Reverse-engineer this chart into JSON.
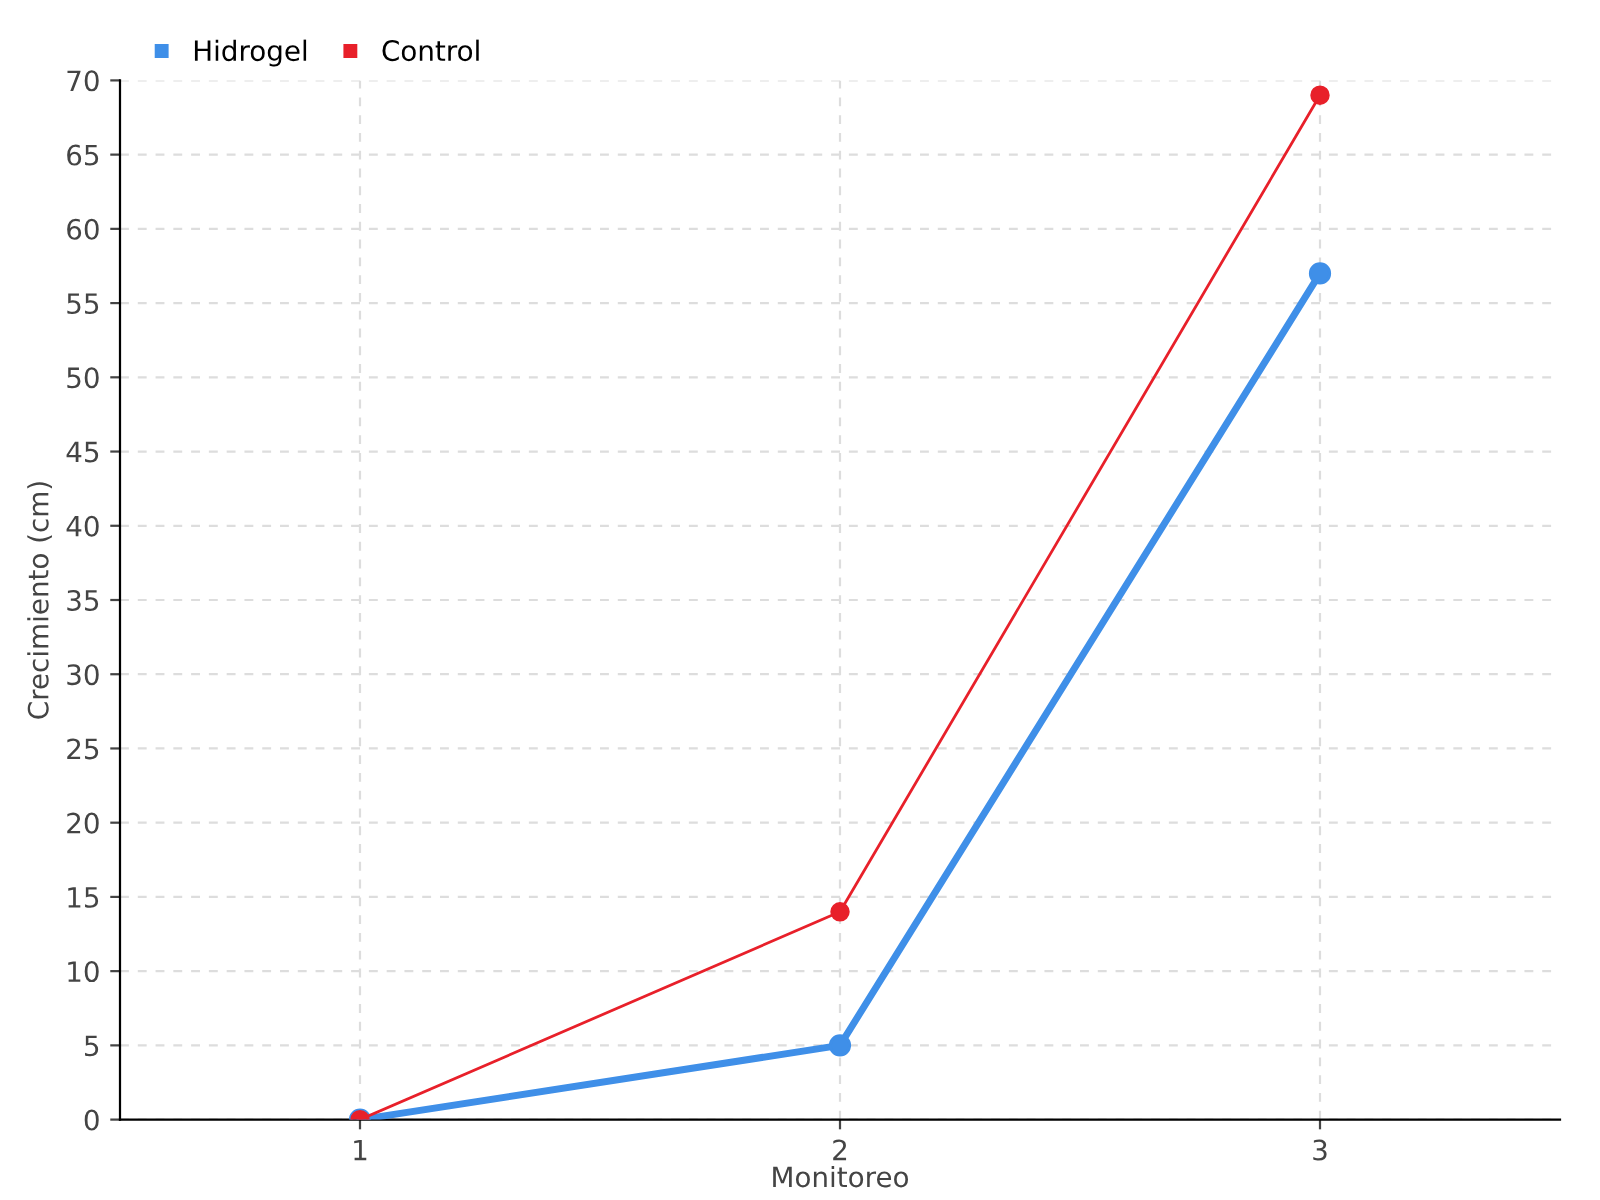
{
  "chart_data": {
    "type": "line",
    "xlabel": "Monitoreo",
    "ylabel": "Crecimiento (cm)",
    "x": [
      1,
      2,
      3
    ],
    "series": [
      {
        "name": "Hidrogel",
        "color": "#3f8fe8",
        "values": [
          0,
          5,
          57
        ]
      },
      {
        "name": "Control",
        "color": "#e8202a",
        "values": [
          0,
          14,
          69
        ]
      }
    ],
    "xlim": [
      0.5,
      3.5
    ],
    "xticks": [
      1,
      2,
      3
    ],
    "ylim": [
      0,
      70
    ],
    "yticks": [
      0,
      5,
      10,
      15,
      20,
      25,
      30,
      35,
      40,
      45,
      50,
      55,
      60,
      65,
      70
    ],
    "grid": true,
    "legend": "top left",
    "marker": "circle",
    "line_style": "solid"
  }
}
